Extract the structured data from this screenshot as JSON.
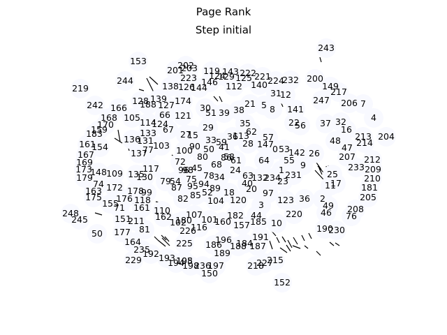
{
  "figure": {
    "title": "Page Rank",
    "subtitle": "Step initial"
  },
  "graph": {
    "node_color": "#f8f9ff",
    "edge_color": "#000000",
    "label_color": "#000000",
    "nodes": [
      "243",
      "153",
      "202",
      "201",
      "203",
      "119",
      "143",
      "222",
      "221",
      "224",
      "232",
      "200",
      "223",
      "129",
      "124",
      "125",
      "244",
      "146",
      "112",
      "140",
      "149",
      "138",
      "126",
      "144",
      "219",
      "217",
      "128",
      "139",
      "174",
      "31",
      "12",
      "247",
      "206",
      "7",
      "242",
      "166",
      "188",
      "127",
      "66",
      "8",
      "21",
      "5",
      "30",
      "51",
      "39",
      "38",
      "141",
      "37",
      "32",
      "4",
      "168",
      "105",
      "170",
      "114",
      "124",
      "121",
      "22",
      "56",
      "16",
      "213",
      "204",
      "159",
      "183",
      "133",
      "67",
      "27",
      "15",
      "29",
      "35",
      "62",
      "57",
      "48",
      "214",
      "161",
      "154",
      "167",
      "136",
      "131",
      "103",
      "77",
      "90",
      "100",
      "80",
      "50",
      "41",
      "113",
      "28",
      "147",
      "0",
      "53",
      "142",
      "26",
      "47",
      "212",
      "209",
      "169",
      "173",
      "148",
      "109",
      "137",
      "33",
      "59",
      "36",
      "117",
      "45",
      "58",
      "72",
      "96",
      "98",
      "75",
      "68",
      "86",
      "64",
      "61",
      "55",
      "9",
      "207",
      "233",
      "210",
      "179",
      "74",
      "172",
      "163",
      "135",
      "130",
      "79",
      "54",
      "78",
      "34",
      "24",
      "63",
      "132",
      "234",
      "23",
      "231",
      "1",
      "25",
      "11",
      "17",
      "181",
      "175",
      "155",
      "178",
      "118",
      "176",
      "99",
      "82",
      "95",
      "85",
      "94",
      "89",
      "18",
      "40",
      "20",
      "97",
      "123",
      "36",
      "2",
      "205",
      "71",
      "161",
      "110",
      "87",
      "52",
      "104",
      "120",
      "3",
      "49",
      "208",
      "151",
      "162",
      "102",
      "180",
      "107",
      "101",
      "160",
      "182",
      "44",
      "220",
      "46",
      "76",
      "211",
      "177",
      "226",
      "116",
      "157",
      "185",
      "10",
      "190",
      "230",
      "50",
      "81",
      "164",
      "225",
      "186",
      "196",
      "188",
      "184",
      "191",
      "187",
      "189",
      "235",
      "192",
      "193",
      "195",
      "197",
      "229",
      "194",
      "108",
      "198",
      "236",
      "150",
      "218",
      "227",
      "215",
      "152",
      "248",
      "245"
    ],
    "edge_count": 45
  }
}
